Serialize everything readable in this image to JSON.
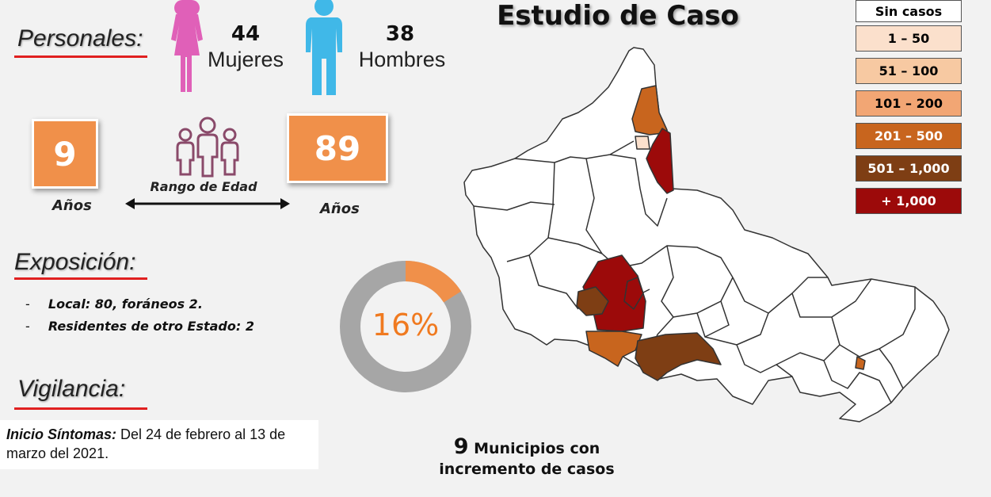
{
  "title": "Estudio de Caso",
  "personales": {
    "heading": "Personales:",
    "women_count": "44",
    "women_label": "Mujeres",
    "men_count": "38",
    "men_label": "Hombres",
    "colors": {
      "women": "#e060b8",
      "men": "#40b8e8"
    }
  },
  "age_range": {
    "min": "9",
    "max": "89",
    "min_unit": "Años",
    "max_unit": "Años",
    "label": "Rango de Edad",
    "box_color": "#f0904a"
  },
  "exposicion": {
    "heading": "Exposición:",
    "items": [
      {
        "dash": "-",
        "text": "Local:  80, foráneos 2."
      },
      {
        "dash": "-",
        "text": "Residentes de otro Estado: 2"
      }
    ]
  },
  "donut": {
    "percent_label": "16%",
    "percent": 16,
    "fill_color": "#f0904a",
    "track_color": "#a6a6a6"
  },
  "vigilancia": {
    "heading": "Vigilancia:",
    "inicio_label": "Inicio Síntomas:",
    "inicio_text": " Del 24 de febrero al 13 de marzo del 2021."
  },
  "municipios": {
    "count": "9",
    "line1": " Municipios con",
    "line2": "incremento de casos"
  },
  "legend": [
    {
      "label": "Sin casos",
      "color": "#ffffff",
      "text_color": "#111111"
    },
    {
      "label": "1 – 50",
      "color": "#fbe0cc",
      "text_color": "#111111"
    },
    {
      "label": "51 – 100",
      "color": "#f7c9a2",
      "text_color": "#111111"
    },
    {
      "label": "101 – 200",
      "color": "#f2a674",
      "text_color": "#111111"
    },
    {
      "label": "201 – 500",
      "color": "#c8651e",
      "text_color": "#ffffff"
    },
    {
      "label": "501 – 1,000",
      "color": "#7e3e14",
      "text_color": "#ffffff"
    },
    {
      "label": "+ 1,000",
      "color": "#9c0a0a",
      "text_color": "#ffffff"
    }
  ]
}
